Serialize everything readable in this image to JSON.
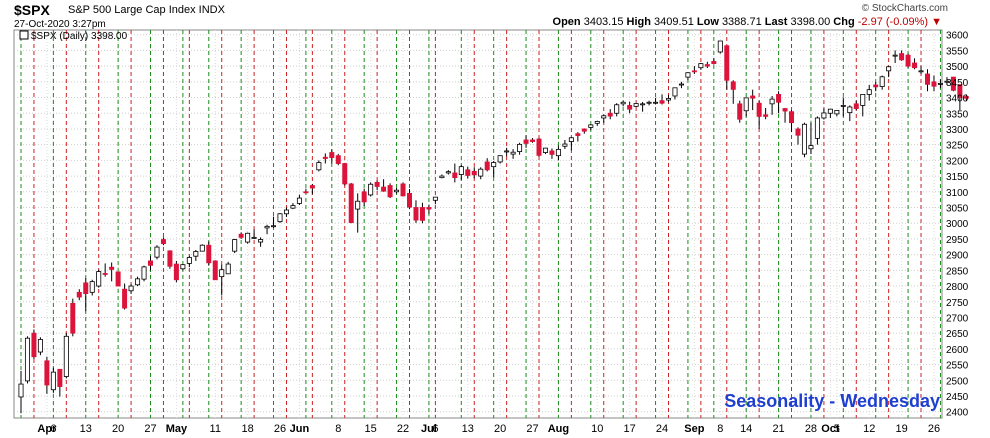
{
  "header": {
    "symbol": "$SPX",
    "name": "S&P 500 Large Cap Index  INDX",
    "date": "27-Oct-2020 3:27pm",
    "credit": "© StockCharts.com",
    "open_label": "Open",
    "open": "3403.15",
    "high_label": "High",
    "high": "3409.51",
    "low_label": "Low",
    "low": "3388.71",
    "last_label": "Last",
    "last": "3398.00",
    "chg_label": "Chg",
    "chg": "-2.97 (-0.09%)"
  },
  "legend": {
    "label": "$SPX (Daily) 3398.00"
  },
  "annotation": "Seasonality - Wednesday",
  "colors": {
    "up": "#ffffff",
    "down": "#dc143c",
    "outline": "#000000",
    "vline_green": "#1a8c1a",
    "vline_red": "#cc2222",
    "annotation": "#1f3fd0"
  },
  "chart_data": {
    "type": "candlestick",
    "title": "$SPX S&P 500 Large Cap Index",
    "ylim": [
      2380,
      3615
    ],
    "y_axis_side": "right",
    "y_ticks": [
      2400,
      2450,
      2500,
      2550,
      2600,
      2650,
      2700,
      2750,
      2800,
      2850,
      2900,
      2950,
      3000,
      3050,
      3100,
      3150,
      3200,
      3250,
      3300,
      3350,
      3400,
      3450,
      3500,
      3550,
      3600
    ],
    "x_tick_labels": [
      {
        "text": "Apr",
        "bold": true,
        "day": 4
      },
      {
        "text": "6",
        "bold": false,
        "day": 5
      },
      {
        "text": "13",
        "bold": false,
        "day": 10
      },
      {
        "text": "20",
        "bold": false,
        "day": 15
      },
      {
        "text": "27",
        "bold": false,
        "day": 20
      },
      {
        "text": "May",
        "bold": true,
        "day": 24
      },
      {
        "text": "11",
        "bold": false,
        "day": 30
      },
      {
        "text": "18",
        "bold": false,
        "day": 35
      },
      {
        "text": "26",
        "bold": false,
        "day": 40
      },
      {
        "text": "Jun",
        "bold": true,
        "day": 43
      },
      {
        "text": "8",
        "bold": false,
        "day": 49
      },
      {
        "text": "15",
        "bold": false,
        "day": 54
      },
      {
        "text": "22",
        "bold": false,
        "day": 59
      },
      {
        "text": "Jul",
        "bold": true,
        "day": 63
      },
      {
        "text": "6",
        "bold": false,
        "day": 64
      },
      {
        "text": "13",
        "bold": false,
        "day": 69
      },
      {
        "text": "20",
        "bold": false,
        "day": 74
      },
      {
        "text": "27",
        "bold": false,
        "day": 79
      },
      {
        "text": "Aug",
        "bold": true,
        "day": 83
      },
      {
        "text": "10",
        "bold": false,
        "day": 89
      },
      {
        "text": "17",
        "bold": false,
        "day": 94
      },
      {
        "text": "24",
        "bold": false,
        "day": 99
      },
      {
        "text": "Sep",
        "bold": true,
        "day": 104
      },
      {
        "text": "8",
        "bold": false,
        "day": 108
      },
      {
        "text": "14",
        "bold": false,
        "day": 112
      },
      {
        "text": "21",
        "bold": false,
        "day": 117
      },
      {
        "text": "28",
        "bold": false,
        "day": 122
      },
      {
        "text": "Oct",
        "bold": true,
        "day": 125
      },
      {
        "text": "5",
        "bold": false,
        "day": 126
      },
      {
        "text": "12",
        "bold": false,
        "day": 131
      },
      {
        "text": "19",
        "bold": false,
        "day": 136
      },
      {
        "text": "26",
        "bold": false,
        "day": 141
      }
    ],
    "green_lines_days": [
      0,
      5,
      10,
      15,
      20,
      25,
      29,
      34,
      39,
      44,
      48,
      53,
      58,
      63,
      68,
      73,
      78,
      83,
      88,
      93,
      98,
      103,
      107,
      112,
      117,
      122,
      127,
      132,
      137,
      142
    ],
    "red_lines_days": [
      2,
      7,
      12,
      17,
      22,
      26,
      31,
      36,
      41,
      45,
      50,
      55,
      60,
      64,
      70,
      75,
      80,
      85,
      90,
      95,
      100,
      105,
      109,
      114,
      119,
      124,
      129,
      134,
      139
    ],
    "ohlc": [
      [
        2447,
        2530,
        2395,
        2488
      ],
      [
        2498,
        2640,
        2490,
        2634
      ],
      [
        2650,
        2662,
        2568,
        2575
      ],
      [
        2590,
        2637,
        2580,
        2630
      ],
      [
        2562,
        2575,
        2457,
        2485
      ],
      [
        2470,
        2540,
        2460,
        2526
      ],
      [
        2535,
        2528,
        2448,
        2480
      ],
      [
        2512,
        2650,
        2506,
        2640
      ],
      [
        2745,
        2760,
        2640,
        2650
      ],
      [
        2780,
        2790,
        2755,
        2765
      ],
      [
        2810,
        2825,
        2720,
        2776
      ],
      [
        2780,
        2820,
        2770,
        2814
      ],
      [
        2800,
        2852,
        2795,
        2846
      ],
      [
        2840,
        2872,
        2830,
        2838
      ],
      [
        2860,
        2875,
        2815,
        2853
      ],
      [
        2845,
        2846,
        2800,
        2800
      ],
      [
        2790,
        2808,
        2725,
        2730
      ],
      [
        2785,
        2806,
        2775,
        2800
      ],
      [
        2804,
        2830,
        2800,
        2823
      ],
      [
        2822,
        2865,
        2815,
        2861
      ],
      [
        2880,
        2895,
        2850,
        2866
      ],
      [
        2892,
        2930,
        2885,
        2924
      ],
      [
        2948,
        2955,
        2930,
        2935
      ],
      [
        2912,
        2914,
        2855,
        2863
      ],
      [
        2870,
        2880,
        2812,
        2820
      ],
      [
        2855,
        2870,
        2850,
        2868
      ],
      [
        2872,
        2896,
        2860,
        2891
      ],
      [
        2895,
        2915,
        2880,
        2910
      ],
      [
        2911,
        2933,
        2910,
        2930
      ],
      [
        2930,
        2942,
        2865,
        2874
      ],
      [
        2880,
        2882,
        2820,
        2820
      ],
      [
        2830,
        2868,
        2770,
        2852
      ],
      [
        2839,
        2877,
        2838,
        2870
      ],
      [
        2911,
        2950,
        2905,
        2948
      ],
      [
        2965,
        2971,
        2950,
        2955
      ],
      [
        2940,
        2970,
        2935,
        2968
      ],
      [
        2955,
        2980,
        2950,
        2955
      ],
      [
        2940,
        2955,
        2925,
        2948
      ],
      [
        2985,
        2995,
        2965,
        2990
      ],
      [
        2990,
        3021,
        2985,
        2992
      ],
      [
        3005,
        3032,
        3001,
        3030
      ],
      [
        3030,
        3050,
        3020,
        3042
      ],
      [
        3048,
        3064,
        3045,
        3056
      ],
      [
        3063,
        3091,
        3058,
        3080
      ],
      [
        3100,
        3110,
        3095,
        3099
      ],
      [
        3120,
        3125,
        3092,
        3112
      ],
      [
        3170,
        3200,
        3165,
        3193
      ],
      [
        3210,
        3222,
        3190,
        3206
      ],
      [
        3225,
        3235,
        3190,
        3209
      ],
      [
        3215,
        3220,
        3185,
        3190
      ],
      [
        3190,
        3192,
        3120,
        3125
      ],
      [
        3125,
        3128,
        3000,
        3002
      ],
      [
        3045,
        3095,
        2970,
        3070
      ],
      [
        3100,
        3110,
        3055,
        3068
      ],
      [
        3090,
        3130,
        3085,
        3124
      ],
      [
        3130,
        3136,
        3105,
        3117
      ],
      [
        3115,
        3140,
        3100,
        3102
      ],
      [
        3120,
        3127,
        3080,
        3084
      ],
      [
        3100,
        3112,
        3094,
        3105
      ],
      [
        3125,
        3130,
        3085,
        3087
      ],
      [
        3095,
        3109,
        3045,
        3051
      ],
      [
        3050,
        3073,
        3001,
        3010
      ],
      [
        3050,
        3065,
        3000,
        3009
      ],
      [
        3050,
        3059,
        3030,
        3045
      ],
      [
        3073,
        3082,
        3061,
        3083
      ],
      [
        3145,
        3155,
        3143,
        3150
      ],
      [
        3160,
        3169,
        3155,
        3164
      ],
      [
        3160,
        3190,
        3130,
        3145
      ],
      [
        3155,
        3185,
        3138,
        3180
      ],
      [
        3170,
        3180,
        3142,
        3152
      ],
      [
        3165,
        3178,
        3143,
        3154
      ],
      [
        3150,
        3178,
        3140,
        3172
      ],
      [
        3195,
        3207,
        3165,
        3170
      ],
      [
        3180,
        3198,
        3146,
        3193
      ],
      [
        3195,
        3216,
        3190,
        3215
      ],
      [
        3228,
        3240,
        3213,
        3230
      ],
      [
        3220,
        3236,
        3205,
        3226
      ],
      [
        3228,
        3256,
        3218,
        3251
      ],
      [
        3265,
        3280,
        3240,
        3254
      ],
      [
        3265,
        3271,
        3256,
        3260
      ],
      [
        3268,
        3272,
        3211,
        3216
      ],
      [
        3225,
        3240,
        3220,
        3239
      ],
      [
        3230,
        3238,
        3205,
        3219
      ],
      [
        3215,
        3247,
        3200,
        3235
      ],
      [
        3245,
        3265,
        3236,
        3252
      ],
      [
        3260,
        3274,
        3232,
        3272
      ],
      [
        3285,
        3290,
        3260,
        3279
      ],
      [
        3300,
        3302,
        3285,
        3293
      ],
      [
        3305,
        3315,
        3296,
        3313
      ],
      [
        3318,
        3326,
        3310,
        3324
      ],
      [
        3335,
        3345,
        3320,
        3342
      ],
      [
        3350,
        3363,
        3331,
        3341
      ],
      [
        3350,
        3382,
        3340,
        3377
      ],
      [
        3380,
        3389,
        3372,
        3385
      ],
      [
        3375,
        3387,
        3350,
        3363
      ],
      [
        3372,
        3381,
        3370,
        3381
      ],
      [
        3380,
        3386,
        3355,
        3380
      ],
      [
        3382,
        3390,
        3375,
        3385
      ],
      [
        3385,
        3399,
        3378,
        3385
      ],
      [
        3390,
        3410,
        3378,
        3382
      ],
      [
        3392,
        3408,
        3385,
        3397
      ],
      [
        3405,
        3431,
        3394,
        3431
      ],
      [
        3440,
        3450,
        3430,
        3443
      ],
      [
        3465,
        3480,
        3455,
        3479
      ],
      [
        3485,
        3500,
        3475,
        3484
      ],
      [
        3495,
        3510,
        3488,
        3508
      ],
      [
        3505,
        3514,
        3494,
        3500
      ],
      [
        3515,
        3525,
        3505,
        3508
      ],
      [
        3545,
        3580,
        3540,
        3580
      ],
      [
        3565,
        3565,
        3425,
        3455
      ],
      [
        3450,
        3455,
        3380,
        3426
      ],
      [
        3380,
        3390,
        3320,
        3331
      ],
      [
        3358,
        3400,
        3340,
        3399
      ],
      [
        3405,
        3425,
        3360,
        3398
      ],
      [
        3382,
        3390,
        3300,
        3340
      ],
      [
        3345,
        3367,
        3331,
        3340
      ],
      [
        3380,
        3405,
        3345,
        3395
      ],
      [
        3410,
        3420,
        3350,
        3385
      ],
      [
        3365,
        3367,
        3320,
        3357
      ],
      [
        3355,
        3360,
        3290,
        3320
      ],
      [
        3300,
        3305,
        3250,
        3280
      ],
      [
        3220,
        3320,
        3210,
        3315
      ],
      [
        3237,
        3320,
        3220,
        3247
      ],
      [
        3270,
        3340,
        3250,
        3335
      ],
      [
        3335,
        3365,
        3330,
        3351
      ],
      [
        3350,
        3364,
        3335,
        3363
      ],
      [
        3348,
        3360,
        3340,
        3359
      ],
      [
        3375,
        3400,
        3340,
        3375
      ],
      [
        3352,
        3375,
        3325,
        3370
      ],
      [
        3380,
        3390,
        3360,
        3365
      ],
      [
        3375,
        3410,
        3340,
        3410
      ],
      [
        3410,
        3440,
        3390,
        3425
      ],
      [
        3440,
        3450,
        3420,
        3434
      ],
      [
        3435,
        3470,
        3425,
        3466
      ],
      [
        3485,
        3500,
        3465,
        3498
      ],
      [
        3535,
        3550,
        3510,
        3535
      ],
      [
        3540,
        3550,
        3517,
        3520
      ],
      [
        3535,
        3540,
        3495,
        3500
      ],
      [
        3510,
        3525,
        3490,
        3495
      ],
      [
        3485,
        3500,
        3475,
        3485
      ],
      [
        3475,
        3490,
        3420,
        3442
      ],
      [
        3450,
        3470,
        3420,
        3436
      ],
      [
        3445,
        3458,
        3430,
        3445
      ],
      [
        3450,
        3465,
        3440,
        3452
      ],
      [
        3465,
        3466,
        3420,
        3423
      ],
      [
        3441,
        3441,
        3360,
        3400
      ],
      [
        3403,
        3410,
        3389,
        3398
      ]
    ]
  }
}
